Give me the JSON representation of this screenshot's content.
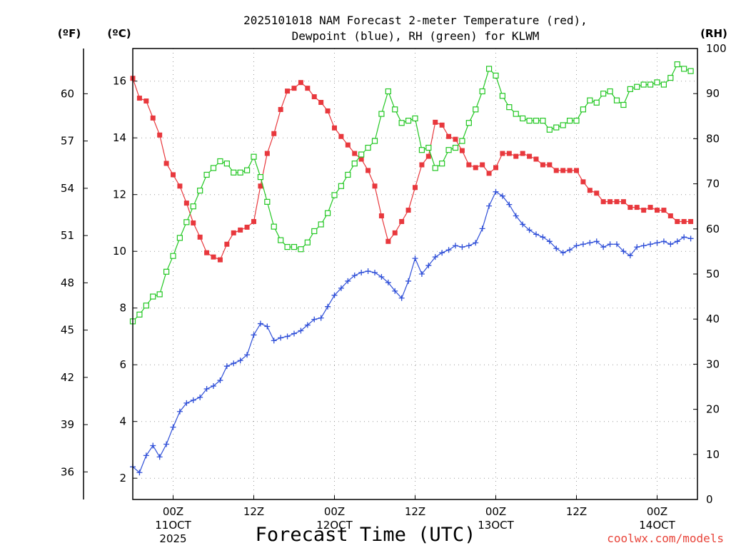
{
  "chart_data": {
    "type": "line",
    "title_line1": "2025101018 NAM Forecast 2-meter Temperature (red),",
    "title_line2": "Dewpoint (blue), RH (green) for KLWM",
    "xlabel": "Forecast Time (UTC)",
    "credit": "coolwx.com/models",
    "units": {
      "fahrenheit": "(ºF)",
      "celsius": "(ºC)",
      "rh": "(RH)"
    },
    "celsius_axis": {
      "range": [
        1.25,
        17.15
      ],
      "ticks": [
        2,
        4,
        6,
        8,
        10,
        12,
        14,
        16
      ]
    },
    "fahrenheit_axis": {
      "ticks": [
        36,
        39,
        42,
        45,
        48,
        51,
        54,
        57,
        60
      ]
    },
    "rh_axis": {
      "range": [
        0,
        100
      ],
      "ticks": [
        0,
        10,
        20,
        30,
        40,
        50,
        60,
        70,
        80,
        90,
        100
      ]
    },
    "x_axis": {
      "range_hours": [
        0,
        84
      ],
      "gridlines_hours": [
        6,
        18,
        30,
        42,
        54,
        66,
        78
      ],
      "ticks": [
        {
          "hour": 6,
          "label": "00Z",
          "date": "11OCT",
          "year": "2025"
        },
        {
          "hour": 18,
          "label": "12Z",
          "date": "",
          "year": ""
        },
        {
          "hour": 30,
          "label": "00Z",
          "date": "12OCT",
          "year": ""
        },
        {
          "hour": 42,
          "label": "12Z",
          "date": "",
          "year": ""
        },
        {
          "hour": 54,
          "label": "00Z",
          "date": "13OCT",
          "year": ""
        },
        {
          "hour": 66,
          "label": "12Z",
          "date": "",
          "year": ""
        },
        {
          "hour": 78,
          "label": "00Z",
          "date": "14OCT",
          "year": ""
        }
      ]
    },
    "series": [
      {
        "name": "Temperature",
        "unit": "C",
        "color": "#e8383d",
        "marker": "filled-square",
        "points": [
          [
            0,
            16.1
          ],
          [
            1,
            15.4
          ],
          [
            2,
            15.3
          ],
          [
            3,
            14.7
          ],
          [
            4,
            14.1
          ],
          [
            5,
            13.1
          ],
          [
            6,
            12.7
          ],
          [
            7,
            12.3
          ],
          [
            8,
            11.7
          ],
          [
            9,
            11.0
          ],
          [
            10,
            10.5
          ],
          [
            11,
            9.95
          ],
          [
            12,
            9.8
          ],
          [
            13,
            9.7
          ],
          [
            14,
            10.25
          ],
          [
            15,
            10.65
          ],
          [
            16,
            10.75
          ],
          [
            17,
            10.85
          ],
          [
            18,
            11.05
          ],
          [
            19,
            12.3
          ],
          [
            20,
            13.45
          ],
          [
            21,
            14.15
          ],
          [
            22,
            15.0
          ],
          [
            23,
            15.65
          ],
          [
            24,
            15.75
          ],
          [
            25,
            15.95
          ],
          [
            26,
            15.75
          ],
          [
            27,
            15.45
          ],
          [
            28,
            15.25
          ],
          [
            29,
            14.95
          ],
          [
            30,
            14.35
          ],
          [
            31,
            14.05
          ],
          [
            32,
            13.75
          ],
          [
            33,
            13.45
          ],
          [
            34,
            13.25
          ],
          [
            35,
            12.85
          ],
          [
            36,
            12.3
          ],
          [
            37,
            11.25
          ],
          [
            38,
            10.35
          ],
          [
            39,
            10.65
          ],
          [
            40,
            11.05
          ],
          [
            41,
            11.45
          ],
          [
            42,
            12.25
          ],
          [
            43,
            13.05
          ],
          [
            44,
            13.35
          ],
          [
            45,
            14.55
          ],
          [
            46,
            14.45
          ],
          [
            47,
            14.05
          ],
          [
            48,
            13.95
          ],
          [
            49,
            13.55
          ],
          [
            50,
            13.05
          ],
          [
            51,
            12.95
          ],
          [
            52,
            13.05
          ],
          [
            53,
            12.75
          ],
          [
            54,
            12.95
          ],
          [
            55,
            13.45
          ],
          [
            56,
            13.45
          ],
          [
            57,
            13.35
          ],
          [
            58,
            13.45
          ],
          [
            59,
            13.35
          ],
          [
            60,
            13.25
          ],
          [
            61,
            13.05
          ],
          [
            62,
            13.05
          ],
          [
            63,
            12.85
          ],
          [
            64,
            12.85
          ],
          [
            65,
            12.85
          ],
          [
            66,
            12.85
          ],
          [
            67,
            12.45
          ],
          [
            68,
            12.15
          ],
          [
            69,
            12.05
          ],
          [
            70,
            11.75
          ],
          [
            71,
            11.75
          ],
          [
            72,
            11.75
          ],
          [
            73,
            11.75
          ],
          [
            74,
            11.55
          ],
          [
            75,
            11.55
          ],
          [
            76,
            11.45
          ],
          [
            77,
            11.55
          ],
          [
            78,
            11.45
          ],
          [
            79,
            11.45
          ],
          [
            80,
            11.25
          ],
          [
            81,
            11.05
          ],
          [
            82,
            11.05
          ],
          [
            83,
            11.05
          ]
        ]
      },
      {
        "name": "Dewpoint",
        "unit": "C",
        "color": "#2f4fd8",
        "marker": "plus",
        "points": [
          [
            0,
            2.4
          ],
          [
            1,
            2.2
          ],
          [
            2,
            2.8
          ],
          [
            3,
            3.15
          ],
          [
            4,
            2.75
          ],
          [
            5,
            3.2
          ],
          [
            6,
            3.8
          ],
          [
            7,
            4.35
          ],
          [
            8,
            4.65
          ],
          [
            9,
            4.75
          ],
          [
            10,
            4.85
          ],
          [
            11,
            5.15
          ],
          [
            12,
            5.25
          ],
          [
            13,
            5.45
          ],
          [
            14,
            5.95
          ],
          [
            15,
            6.05
          ],
          [
            16,
            6.15
          ],
          [
            17,
            6.35
          ],
          [
            18,
            7.05
          ],
          [
            19,
            7.45
          ],
          [
            20,
            7.35
          ],
          [
            21,
            6.85
          ],
          [
            22,
            6.95
          ],
          [
            23,
            7.0
          ],
          [
            24,
            7.1
          ],
          [
            25,
            7.2
          ],
          [
            26,
            7.4
          ],
          [
            27,
            7.6
          ],
          [
            28,
            7.65
          ],
          [
            29,
            8.05
          ],
          [
            30,
            8.45
          ],
          [
            31,
            8.7
          ],
          [
            32,
            8.95
          ],
          [
            33,
            9.15
          ],
          [
            34,
            9.25
          ],
          [
            35,
            9.3
          ],
          [
            36,
            9.25
          ],
          [
            37,
            9.1
          ],
          [
            38,
            8.9
          ],
          [
            39,
            8.6
          ],
          [
            40,
            8.35
          ],
          [
            41,
            8.95
          ],
          [
            42,
            9.75
          ],
          [
            43,
            9.2
          ],
          [
            44,
            9.5
          ],
          [
            45,
            9.8
          ],
          [
            46,
            9.95
          ],
          [
            47,
            10.05
          ],
          [
            48,
            10.2
          ],
          [
            49,
            10.15
          ],
          [
            50,
            10.2
          ],
          [
            51,
            10.3
          ],
          [
            52,
            10.8
          ],
          [
            53,
            11.6
          ],
          [
            54,
            12.1
          ],
          [
            55,
            11.95
          ],
          [
            56,
            11.65
          ],
          [
            57,
            11.25
          ],
          [
            58,
            10.95
          ],
          [
            59,
            10.75
          ],
          [
            60,
            10.6
          ],
          [
            61,
            10.5
          ],
          [
            62,
            10.35
          ],
          [
            63,
            10.1
          ],
          [
            64,
            9.95
          ],
          [
            65,
            10.05
          ],
          [
            66,
            10.2
          ],
          [
            67,
            10.25
          ],
          [
            68,
            10.3
          ],
          [
            69,
            10.35
          ],
          [
            70,
            10.15
          ],
          [
            71,
            10.25
          ],
          [
            72,
            10.25
          ],
          [
            73,
            10.0
          ],
          [
            74,
            9.85
          ],
          [
            75,
            10.15
          ],
          [
            76,
            10.2
          ],
          [
            77,
            10.25
          ],
          [
            78,
            10.3
          ],
          [
            79,
            10.35
          ],
          [
            80,
            10.25
          ],
          [
            81,
            10.35
          ],
          [
            82,
            10.5
          ],
          [
            83,
            10.45
          ]
        ]
      },
      {
        "name": "RH",
        "unit": "%",
        "color": "#22c722",
        "marker": "open-square",
        "points": [
          [
            0,
            39.5
          ],
          [
            1,
            41.0
          ],
          [
            2,
            43.0
          ],
          [
            3,
            45.0
          ],
          [
            4,
            45.5
          ],
          [
            5,
            50.5
          ],
          [
            6,
            54.0
          ],
          [
            7,
            58.0
          ],
          [
            8,
            61.5
          ],
          [
            9,
            65.0
          ],
          [
            10,
            68.5
          ],
          [
            11,
            72.0
          ],
          [
            12,
            73.5
          ],
          [
            13,
            75.0
          ],
          [
            14,
            74.5
          ],
          [
            15,
            72.5
          ],
          [
            16,
            72.5
          ],
          [
            17,
            73.0
          ],
          [
            18,
            76.0
          ],
          [
            19,
            71.5
          ],
          [
            20,
            66.0
          ],
          [
            21,
            60.5
          ],
          [
            22,
            57.5
          ],
          [
            23,
            56.0
          ],
          [
            24,
            56.0
          ],
          [
            25,
            55.5
          ],
          [
            26,
            57.0
          ],
          [
            27,
            59.5
          ],
          [
            28,
            61.0
          ],
          [
            29,
            63.5
          ],
          [
            30,
            67.5
          ],
          [
            31,
            69.5
          ],
          [
            32,
            72.0
          ],
          [
            33,
            74.5
          ],
          [
            34,
            76.5
          ],
          [
            35,
            78.0
          ],
          [
            36,
            79.5
          ],
          [
            37,
            85.5
          ],
          [
            38,
            90.5
          ],
          [
            39,
            86.5
          ],
          [
            40,
            83.5
          ],
          [
            41,
            84.0
          ],
          [
            42,
            84.5
          ],
          [
            43,
            77.5
          ],
          [
            44,
            78.0
          ],
          [
            45,
            73.5
          ],
          [
            46,
            74.5
          ],
          [
            47,
            77.5
          ],
          [
            48,
            78.0
          ],
          [
            49,
            79.5
          ],
          [
            50,
            83.5
          ],
          [
            51,
            86.5
          ],
          [
            52,
            90.5
          ],
          [
            53,
            95.5
          ],
          [
            54,
            94.0
          ],
          [
            55,
            89.5
          ],
          [
            56,
            87.0
          ],
          [
            57,
            85.5
          ],
          [
            58,
            84.5
          ],
          [
            59,
            84.0
          ],
          [
            60,
            84.0
          ],
          [
            61,
            84.0
          ],
          [
            62,
            82.0
          ],
          [
            63,
            82.5
          ],
          [
            64,
            83.0
          ],
          [
            65,
            84.0
          ],
          [
            66,
            84.0
          ],
          [
            67,
            86.5
          ],
          [
            68,
            88.5
          ],
          [
            69,
            88.0
          ],
          [
            70,
            90.0
          ],
          [
            71,
            90.5
          ],
          [
            72,
            88.5
          ],
          [
            73,
            87.5
          ],
          [
            74,
            91.0
          ],
          [
            75,
            91.5
          ],
          [
            76,
            92.0
          ],
          [
            77,
            92.0
          ],
          [
            78,
            92.5
          ],
          [
            79,
            92.0
          ],
          [
            80,
            93.5
          ],
          [
            81,
            96.5
          ],
          [
            82,
            95.5
          ],
          [
            83,
            95.0
          ]
        ]
      }
    ]
  }
}
